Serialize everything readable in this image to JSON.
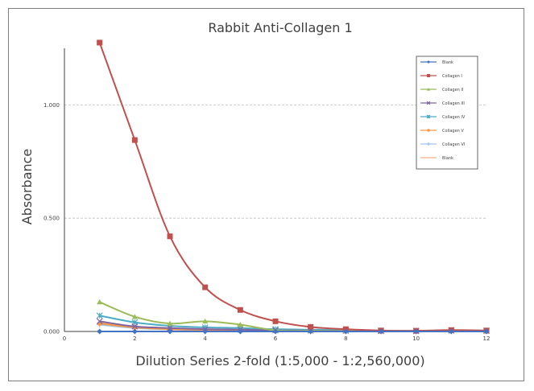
{
  "chart_data": {
    "type": "line",
    "title": "Rabbit Anti-Collagen 1",
    "xlabel": "Dilution Series 2-fold (1:5,000 - 1:2,560,000)",
    "ylabel": "Absorbance",
    "xlim": [
      0,
      12
    ],
    "ylim": [
      0,
      1.25
    ],
    "x_ticks": [
      0,
      2,
      4,
      6,
      8,
      10,
      12
    ],
    "x_tick_labels": [
      "0",
      "2",
      "4",
      "6",
      "8",
      "10",
      "12"
    ],
    "y_ticks": [
      0,
      0.5,
      1.0
    ],
    "y_tick_labels": [
      "0.000",
      "0.500",
      "1.000"
    ],
    "grid": "horizontal dashed",
    "legend_position": "top-right",
    "x": [
      1,
      2,
      3,
      4,
      5,
      6,
      7,
      8,
      9,
      10,
      11,
      12
    ],
    "series": [
      {
        "name": "Blank",
        "color": "#4472c4",
        "marker": "diamond",
        "values": [
          0.0,
          0.0,
          0.0,
          0.0,
          0.0,
          0.0,
          0.0,
          0.0,
          0.0,
          0.0,
          0.0,
          0.0
        ]
      },
      {
        "name": "Collagen I",
        "color": "#c0504d",
        "marker": "square",
        "values": [
          1.275,
          0.845,
          0.42,
          0.195,
          0.095,
          0.045,
          0.02,
          0.01,
          0.004,
          0.003,
          0.006,
          0.004
        ]
      },
      {
        "name": "Collagen II",
        "color": "#9bbb59",
        "marker": "triangle",
        "values": [
          0.13,
          0.065,
          0.035,
          0.045,
          0.03,
          0.005,
          0.003,
          0.002,
          0.001,
          0.001,
          0.003,
          0.002
        ]
      },
      {
        "name": "Collagen III",
        "color": "#8064a2",
        "marker": "x",
        "values": [
          0.045,
          0.022,
          0.015,
          0.01,
          0.008,
          0.005,
          0.004,
          0.003,
          0.002,
          0.002,
          0.004,
          0.003
        ]
      },
      {
        "name": "Collagen IV",
        "color": "#4bacc6",
        "marker": "star",
        "values": [
          0.07,
          0.04,
          0.025,
          0.018,
          0.015,
          0.01,
          0.008,
          0.006,
          0.004,
          0.003,
          0.005,
          0.004
        ]
      },
      {
        "name": "Collagen V",
        "color": "#f79646",
        "marker": "circle",
        "values": [
          0.035,
          0.018,
          0.01,
          0.007,
          0.005,
          0.003,
          0.002,
          0.002,
          0.001,
          0.001,
          0.002,
          0.002
        ]
      },
      {
        "name": "Collagen VI",
        "color": "#9dc3e6",
        "marker": "plus",
        "values": [
          0.03,
          0.015,
          0.009,
          0.006,
          0.004,
          0.003,
          0.002,
          0.001,
          0.001,
          0.001,
          0.002,
          0.001
        ]
      },
      {
        "name": "Blank",
        "color": "#f4b183",
        "marker": "none",
        "values": [
          0.04,
          0.02,
          0.012,
          0.008,
          0.006,
          0.004,
          0.003,
          0.002,
          0.001,
          0.001,
          0.002,
          0.002
        ]
      }
    ]
  }
}
